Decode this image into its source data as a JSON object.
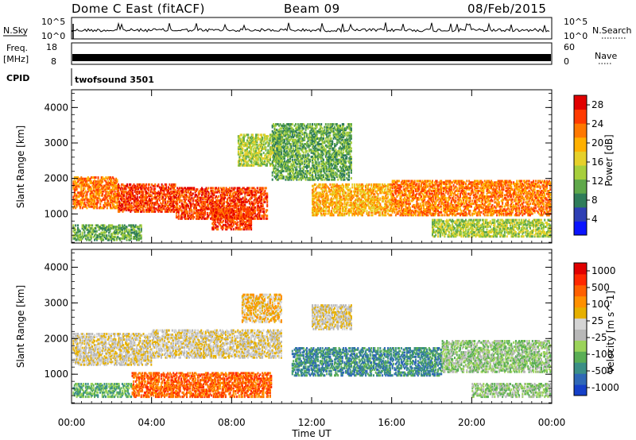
{
  "header": {
    "radar": "Dome C East (fitACF)",
    "beam": "Beam 09",
    "date": "08/Feb/2015"
  },
  "strip_labels": {
    "nsky": "N.Sky",
    "nsearch": "N.Search",
    "freq_line1": "Freq.",
    "freq_line2": "[MHz]",
    "nave": "Nave",
    "cpid": "CPID",
    "cpid_value": "twofsound 3501",
    "nsky_ticks": [
      "10^5",
      "10^0"
    ],
    "nsearch_ticks": [
      "10^5",
      "10^0"
    ],
    "freq_ticks": [
      "18",
      "8"
    ],
    "nave_ticks": [
      "60",
      "0"
    ]
  },
  "chart_data": [
    {
      "type": "heatmap",
      "name": "power",
      "ylabel": "Slant Range [km]",
      "ylim": [
        180,
        4500
      ],
      "yticks": [
        "1000",
        "2000",
        "3000",
        "4000"
      ],
      "colorbar": {
        "label": "Power [dB]",
        "ticks": [
          "4",
          "8",
          "12",
          "16",
          "20",
          "24",
          "28"
        ],
        "colors": [
          "#0a14ff",
          "#2e3fb4",
          "#2f7c5a",
          "#5fa84a",
          "#a7cf3c",
          "#e6d02a",
          "#ffb000",
          "#ff7800",
          "#ff3a00",
          "#e10000"
        ]
      },
      "bands": [
        {
          "t0": 0.0,
          "t1": 2.3,
          "r0": 1200,
          "r1": 2100,
          "level": 7
        },
        {
          "t0": 2.3,
          "t1": 5.2,
          "r0": 1100,
          "r1": 1900,
          "level": 8
        },
        {
          "t0": 5.2,
          "t1": 9.8,
          "r0": 900,
          "r1": 1800,
          "level": 8
        },
        {
          "t0": 7.0,
          "t1": 9.0,
          "r0": 600,
          "r1": 1200,
          "level": 8
        },
        {
          "t0": 8.3,
          "t1": 10.5,
          "r0": 2400,
          "r1": 3300,
          "level": 4
        },
        {
          "t0": 12.0,
          "t1": 16.0,
          "r0": 1000,
          "r1": 1900,
          "level": 6
        },
        {
          "t0": 16.0,
          "t1": 24.0,
          "r0": 1000,
          "r1": 2000,
          "level": 7
        },
        {
          "t0": 10.0,
          "t1": 14.0,
          "r0": 2000,
          "r1": 3600,
          "level": 3
        },
        {
          "t0": 0.0,
          "t1": 3.5,
          "r0": 300,
          "r1": 750,
          "level": 3
        },
        {
          "t0": 18.0,
          "t1": 24.0,
          "r0": 400,
          "r1": 900,
          "level": 4
        }
      ]
    },
    {
      "type": "heatmap",
      "name": "velocity",
      "xlabel": "Time UT",
      "ylabel": "Slant Range [km]",
      "ylim": [
        180,
        4500
      ],
      "xlim": [
        0,
        24
      ],
      "yticks": [
        "1000",
        "2000",
        "3000",
        "4000"
      ],
      "xticks": [
        "00:00",
        "04:00",
        "08:00",
        "12:00",
        "16:00",
        "20:00",
        "00:00"
      ],
      "colorbar": {
        "label": "Velocity [m s^-1]",
        "ticks": [
          "1000",
          "500",
          "100",
          "25",
          "-25",
          "-100",
          "-500",
          "-1000"
        ],
        "colors": [
          "#1540c8",
          "#2f68b6",
          "#3b8f86",
          "#5aae55",
          "#9bd35a",
          "#b8b8b8",
          "#d4d4d4",
          "#e6b000",
          "#ff9000",
          "#ff6000",
          "#ff2800",
          "#e00000"
        ]
      },
      "bands": [
        {
          "t0": 0.0,
          "t1": 4.0,
          "r0": 1300,
          "r1": 2200,
          "level": 6
        },
        {
          "t0": 4.0,
          "t1": 10.5,
          "r0": 1500,
          "r1": 2300,
          "level": 6
        },
        {
          "t0": 3.0,
          "t1": 10.0,
          "r0": 400,
          "r1": 1100,
          "level": 9
        },
        {
          "t0": 0.0,
          "t1": 3.0,
          "r0": 400,
          "r1": 800,
          "level": 3
        },
        {
          "t0": 11.0,
          "t1": 18.5,
          "r0": 1000,
          "r1": 1800,
          "level": 2
        },
        {
          "t0": 18.5,
          "t1": 24.0,
          "r0": 1100,
          "r1": 2000,
          "level": 4
        },
        {
          "t0": 8.5,
          "t1": 10.5,
          "r0": 2500,
          "r1": 3300,
          "level": 7
        },
        {
          "t0": 12.0,
          "t1": 14.0,
          "r0": 2300,
          "r1": 3000,
          "level": 6
        },
        {
          "t0": 20.0,
          "t1": 24.0,
          "r0": 400,
          "r1": 800,
          "level": 4
        }
      ]
    }
  ]
}
